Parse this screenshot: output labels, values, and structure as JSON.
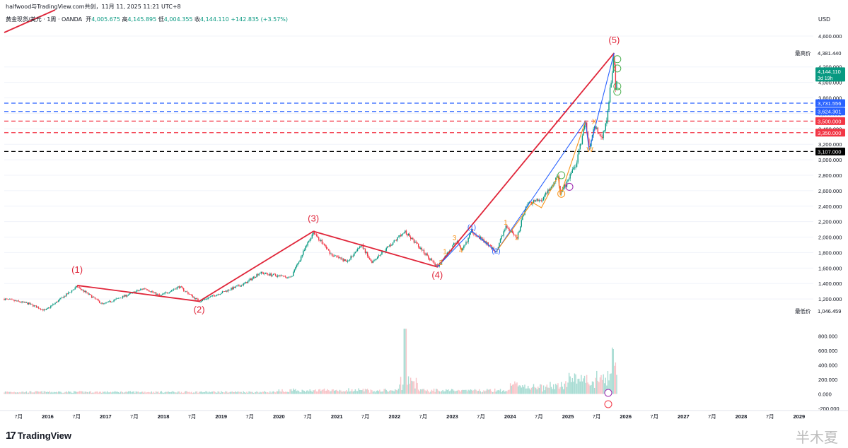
{
  "header": {
    "published_by": "halfwood与TradingView.com共创，11月 11, 2025 11:21 UTC+8",
    "symbol": "黄金现货/美元 · 1周 · OANDA",
    "open_label": "开",
    "open_value": "4,005.675",
    "high_label": "高",
    "high_value": "4,145.895",
    "low_label": "低",
    "low_value": "4,004.355",
    "close_label": "收",
    "close_value": "4,144.110",
    "change": "+142.835 (+3.57%)"
  },
  "branding": {
    "logo": "17",
    "name": "TradingView",
    "watermark": "半木夏"
  },
  "colors": {
    "up": "#089981",
    "down": "#f23645",
    "wave": "#e0263a",
    "blue_line": "#2962ff",
    "orange_line": "#f7931a",
    "volume_up": "#a8dcd3",
    "volume_down": "#f8c4c8"
  },
  "chart_data": {
    "type": "candlestick",
    "currency": "USD",
    "y_ticks": [
      "4,600.000",
      "4,200.000",
      "4,000.000",
      "3,800.000",
      "3,600.000",
      "3,400.000",
      "3,200.000",
      "3,000.000",
      "2,800.000",
      "2,600.000",
      "2,400.000",
      "2,200.000",
      "2,000.000",
      "1,800.000",
      "1,600.000",
      "1,400.000",
      "1,200.000"
    ],
    "y_range": [
      1000,
      4700
    ],
    "volume_ticks": [
      "800.000",
      "600.000",
      "400.000",
      "200.000",
      "0.000",
      "-200.000"
    ],
    "x_ticks": [
      "7月",
      "2016",
      "7月",
      "2017",
      "7月",
      "2018",
      "7月",
      "2019",
      "7月",
      "2020",
      "7月",
      "2021",
      "7月",
      "2022",
      "7月",
      "2023",
      "7月",
      "2024",
      "7月",
      "2025",
      "7月",
      "2026",
      "7月",
      "2027",
      "7月",
      "2028",
      "7月",
      "2029"
    ],
    "x_range": [
      "2015-04-01",
      "2029-04-01"
    ],
    "price_labels": [
      {
        "text": "最高价",
        "value": "4,381.440",
        "y": 4381.44,
        "kind": "plain"
      },
      {
        "text": "",
        "value": "4,144.110",
        "sub": "3d 19h",
        "y": 4144.11,
        "kind": "last"
      },
      {
        "text": "",
        "value": "3,731.556",
        "y": 3731.556,
        "kind": "blue"
      },
      {
        "text": "",
        "value": "3,624.301",
        "y": 3624.301,
        "kind": "blue"
      },
      {
        "text": "",
        "value": "3,500.000",
        "y": 3500,
        "kind": "red"
      },
      {
        "text": "",
        "value": "3,350.000",
        "y": 3350,
        "kind": "red"
      },
      {
        "text": "",
        "value": "3,107.000",
        "y": 3107,
        "kind": "black"
      },
      {
        "text": "最低价",
        "value": "1,046.459",
        "y": 1046.459,
        "kind": "plain"
      }
    ],
    "horizontal_lines": [
      {
        "y": 3731.556,
        "color": "#2962ff"
      },
      {
        "y": 3624.301,
        "color": "#2962ff"
      },
      {
        "y": 3500,
        "color": "#f23645"
      },
      {
        "y": 3350,
        "color": "#f23645"
      },
      {
        "y": 3107,
        "color": "#000000"
      }
    ],
    "price_path": [
      [
        "2015-04-01",
        1200
      ],
      [
        "2015-09-01",
        1140
      ],
      [
        "2015-12-15",
        1050
      ],
      [
        "2016-07-05",
        1360
      ],
      [
        "2016-12-15",
        1130
      ],
      [
        "2017-09-05",
        1340
      ],
      [
        "2017-12-10",
        1240
      ],
      [
        "2018-04-10",
        1360
      ],
      [
        "2018-08-15",
        1170
      ],
      [
        "2019-06-01",
        1400
      ],
      [
        "2019-09-01",
        1540
      ],
      [
        "2020-03-15",
        1470
      ],
      [
        "2020-08-06",
        2070
      ],
      [
        "2020-11-30",
        1770
      ],
      [
        "2021-03-08",
        1680
      ],
      [
        "2021-06-01",
        1910
      ],
      [
        "2021-08-09",
        1680
      ],
      [
        "2022-03-08",
        2070
      ],
      [
        "2022-09-28",
        1615
      ],
      [
        "2023-02-01",
        1960
      ],
      [
        "2023-02-28",
        1805
      ],
      [
        "2023-05-04",
        2080
      ],
      [
        "2023-10-05",
        1810
      ],
      [
        "2023-12-04",
        2140
      ],
      [
        "2024-02-14",
        1985
      ],
      [
        "2024-04-12",
        2430
      ],
      [
        "2024-05-20",
        2450
      ],
      [
        "2024-07-17",
        2480
      ],
      [
        "2024-10-31",
        2790
      ],
      [
        "2024-11-14",
        2540
      ],
      [
        "2025-02-24",
        2955
      ],
      [
        "2025-04-22",
        3500
      ],
      [
        "2025-05-15",
        3120
      ],
      [
        "2025-06-16",
        3450
      ],
      [
        "2025-07-30",
        3270
      ],
      [
        "2025-09-01",
        3480
      ],
      [
        "2025-10-20",
        4381
      ],
      [
        "2025-10-28",
        3930
      ],
      [
        "2025-11-10",
        4144
      ]
    ],
    "elliott_waves": [
      {
        "label": "(1)",
        "date": "2016-07-05",
        "price": 1375
      },
      {
        "label": "(2)",
        "date": "2018-08-15",
        "price": 1170
      },
      {
        "label": "(3)",
        "date": "2020-08-06",
        "price": 2075
      },
      {
        "label": "(4)",
        "date": "2022-09-28",
        "price": 1615
      },
      {
        "label": "(5)",
        "date": "2025-10-20",
        "price": 4381
      }
    ],
    "minor_labels": [
      {
        "label": "1",
        "date": "2022-11-15",
        "price": 1780,
        "color": "#f7931a"
      },
      {
        "label": "2",
        "date": "2022-10-20",
        "price": 1640,
        "color": "#f7931a"
      },
      {
        "label": "3",
        "date": "2023-01-15",
        "price": 1960,
        "color": "#f7931a"
      },
      {
        "label": "4",
        "date": "2023-02-25",
        "price": 1800,
        "color": "#f7931a"
      },
      {
        "label": "(1)",
        "date": "2023-05-04",
        "price": 2095,
        "color": "#2962ff"
      },
      {
        "label": "(2)",
        "date": "2023-10-05",
        "price": 1790,
        "color": "#2962ff"
      },
      {
        "label": "1",
        "date": "2023-12-04",
        "price": 2160,
        "color": "#f7931a"
      },
      {
        "label": "2",
        "date": "2024-02-14",
        "price": 1965,
        "color": "#f7931a"
      },
      {
        "label": "W",
        "date": "2025-05-20",
        "price": 3100,
        "color": "#f7931a"
      },
      {
        "label": "X",
        "date": "2025-06-16",
        "price": 3460,
        "color": "#f7931a"
      }
    ],
    "volume_range": [
      -200,
      1000
    ]
  }
}
